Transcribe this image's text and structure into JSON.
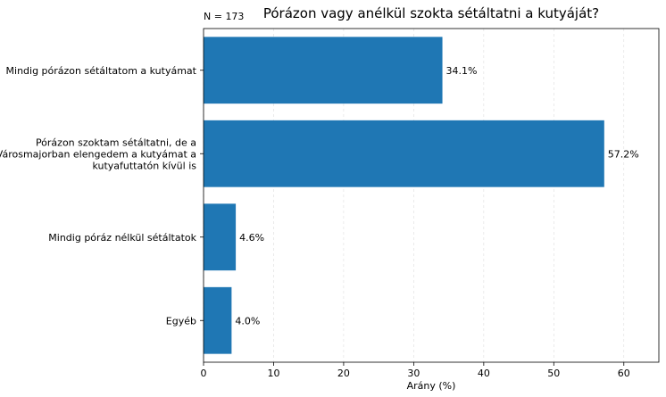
{
  "chart_data": {
    "type": "bar",
    "orientation": "horizontal",
    "title": "Pórázon vagy anélkül szokta sétáltatni a kutyáját?",
    "note": "N = 173",
    "xlabel": "Arány (%)",
    "ylabel": "",
    "xlim": [
      0,
      65
    ],
    "xticks": [
      "0",
      "10",
      "20",
      "30",
      "40",
      "50",
      "60"
    ],
    "grid": "vertical",
    "bar_color": "#1f77b4",
    "categories": [
      [
        "Mindig pórázon sétáltatom a kutyámat"
      ],
      [
        "Pórázon szoktam sétáltatni, de a",
        "Városmajorban elengedem a kutyámat a",
        "kutyafuttatón kívül is"
      ],
      [
        "Mindig póráz nélkül sétáltatok"
      ],
      [
        "Egyéb"
      ]
    ],
    "values": [
      34.1,
      57.2,
      4.6,
      4.0
    ],
    "value_labels": [
      "34.1%",
      "57.2%",
      "4.6%",
      "4.0%"
    ]
  }
}
